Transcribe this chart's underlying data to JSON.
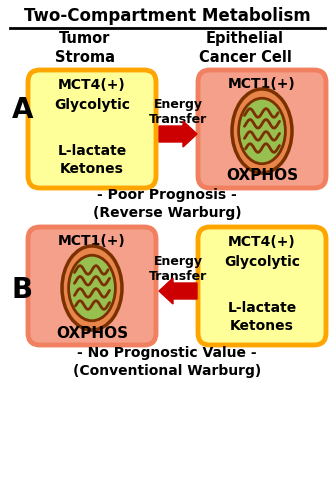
{
  "title": "Two-Compartment Metabolism",
  "col1_header": "Tumor\nStroma",
  "col2_header": "Epithelial\nCancer Cell",
  "panel_A_label": "A",
  "panel_B_label": "B",
  "panel_A_left_label": "MCT4(+)",
  "panel_A_left_sub1": "Glycolytic",
  "panel_A_left_sub2": "L-lactate\nKetones",
  "panel_A_right_label": "MCT1(+)",
  "panel_A_right_sub": "OXPHOS",
  "panel_A_arrow_label": "Energy\nTransfer",
  "panel_A_caption": "- Poor Prognosis -\n(Reverse Warburg)",
  "panel_B_left_label": "MCT1(+)",
  "panel_B_left_sub": "OXPHOS",
  "panel_B_right_label": "MCT4(+)",
  "panel_B_right_sub1": "Glycolytic",
  "panel_B_right_sub2": "L-lactate\nKetones",
  "panel_B_arrow_label": "Energy\nTransfer",
  "panel_B_caption": "- No Prognostic Value -\n(Conventional Warburg)",
  "color_yellow_fill": "#FFFF99",
  "color_yellow_border": "#FFA500",
  "color_red_fill": "#F5A08A",
  "color_red_border": "#F08060",
  "color_mito_outer": "#7B3000",
  "color_mito_inner_fill": "#98C050",
  "color_mito_bg": "#E8854A",
  "color_cristae": "#7B3000",
  "color_arrow": "#CC0000",
  "bg_color": "#FFFFFF"
}
